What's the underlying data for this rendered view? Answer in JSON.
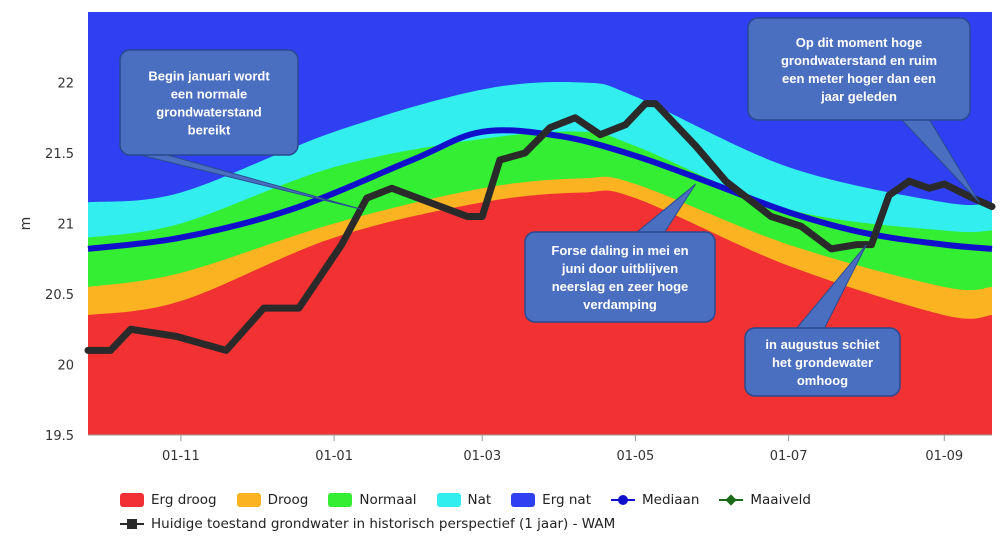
{
  "chart_data": {
    "type": "area",
    "ylabel": "m",
    "ylim": [
      19.5,
      22.5
    ],
    "yticks": [
      "19.5",
      "20",
      "20.5",
      "21",
      "21.5",
      "22"
    ],
    "xlim": [
      "2017-09-25",
      "2018-09-20"
    ],
    "xticks": [
      {
        "date": "2017-11-01",
        "label": "01-11"
      },
      {
        "date": "2018-01-01",
        "label": "01-01"
      },
      {
        "date": "2018-03-01",
        "label": "01-03"
      },
      {
        "date": "2018-05-01",
        "label": "01-05"
      },
      {
        "date": "2018-07-01",
        "label": "01-07"
      },
      {
        "date": "2018-09-01",
        "label": "01-09"
      }
    ],
    "x": [
      "2017-09-25",
      "2017-11-01",
      "2018-01-01",
      "2018-03-01",
      "2018-04-10",
      "2018-05-01",
      "2018-07-01",
      "2018-09-01",
      "2018-09-20"
    ],
    "bands": [
      {
        "name": "Erg droog",
        "color": "#f23232",
        "upper": [
          20.35,
          20.45,
          20.9,
          21.15,
          21.22,
          21.18,
          20.7,
          20.35,
          20.35
        ]
      },
      {
        "name": "Droog",
        "color": "#fbb322",
        "upper": [
          20.55,
          20.65,
          21.0,
          21.25,
          21.32,
          21.28,
          20.85,
          20.55,
          20.55
        ]
      },
      {
        "name": "Normaal",
        "color": "#33ee33",
        "upper": [
          20.9,
          21.0,
          21.4,
          21.6,
          21.65,
          21.55,
          21.1,
          20.95,
          20.95
        ]
      },
      {
        "name": "Nat",
        "color": "#33eeee",
        "upper": [
          21.15,
          21.22,
          21.65,
          21.95,
          22.0,
          21.9,
          21.4,
          21.15,
          21.15
        ]
      },
      {
        "name": "Erg nat",
        "color": "#2f3ff2",
        "upper": [
          22.5,
          22.5,
          22.5,
          22.5,
          22.5,
          22.5,
          22.5,
          22.5,
          22.5
        ]
      }
    ],
    "series": [
      {
        "name": "Mediaan",
        "color": "#1010cc",
        "x": [
          "2017-09-25",
          "2017-11-01",
          "2017-12-15",
          "2018-02-01",
          "2018-03-01",
          "2018-04-01",
          "2018-05-01",
          "2018-06-01",
          "2018-07-01",
          "2018-08-01",
          "2018-09-01",
          "2018-09-20"
        ],
        "values": [
          20.82,
          20.9,
          21.1,
          21.45,
          21.65,
          21.62,
          21.48,
          21.28,
          21.08,
          20.93,
          20.85,
          20.82
        ]
      },
      {
        "name": "Maaiveld",
        "color": "#1a6b1a",
        "x": [],
        "values": []
      },
      {
        "name": "Huidige toestand grondwater in historisch perspectief (1 jaar) - WAM",
        "color": "#2a2a2a",
        "x": [
          "2017-09-25",
          "2017-10-04",
          "2017-10-12",
          "2017-10-30",
          "2017-11-19",
          "2017-12-04",
          "2017-12-18",
          "2018-01-04",
          "2018-01-14",
          "2018-01-24",
          "2018-02-08",
          "2018-02-23",
          "2018-03-01",
          "2018-03-08",
          "2018-03-18",
          "2018-03-28",
          "2018-04-07",
          "2018-04-17",
          "2018-04-27",
          "2018-05-05",
          "2018-05-09",
          "2018-05-25",
          "2018-06-06",
          "2018-06-24",
          "2018-07-06",
          "2018-07-18",
          "2018-07-28",
          "2018-08-03",
          "2018-08-10",
          "2018-08-18",
          "2018-08-26",
          "2018-09-01",
          "2018-09-10",
          "2018-09-20"
        ],
        "values": [
          20.1,
          20.1,
          20.25,
          20.2,
          20.1,
          20.4,
          20.4,
          20.85,
          21.18,
          21.25,
          21.15,
          21.05,
          21.05,
          21.45,
          21.5,
          21.68,
          21.75,
          21.63,
          21.7,
          21.85,
          21.85,
          21.55,
          21.3,
          21.05,
          20.98,
          20.82,
          20.85,
          20.85,
          21.2,
          21.3,
          21.25,
          21.28,
          21.2,
          21.12
        ]
      }
    ],
    "annotations": [
      {
        "id": "ann1",
        "text": [
          "Begin januari wordt",
          "een normale",
          "grondwaterstand",
          "bereikt"
        ],
        "target_date": "2018-01-12",
        "target_value": 21.1
      },
      {
        "id": "ann2",
        "text": [
          "Forse daling in mei en",
          "juni door uitblijven",
          "neerslag  en zeer hoge",
          "verdamping"
        ],
        "target_date": "2018-05-25",
        "target_value": 21.28
      },
      {
        "id": "ann3",
        "text": [
          "in augustus schiet",
          "het grondewater",
          "omhoog"
        ],
        "target_date": "2018-08-01",
        "target_value": 20.85
      },
      {
        "id": "ann4",
        "text": [
          "Op dit moment hoge",
          "grondwaterstand en ruim",
          "een meter hoger dan een",
          "jaar geleden"
        ],
        "target_date": "2018-09-15",
        "target_value": 21.15
      }
    ],
    "legend": {
      "position": "bottom",
      "items": [
        {
          "label": "Erg droog",
          "kind": "area",
          "color": "#f23232"
        },
        {
          "label": "Droog",
          "kind": "area",
          "color": "#fbb322"
        },
        {
          "label": "Normaal",
          "kind": "area",
          "color": "#33ee33"
        },
        {
          "label": "Nat",
          "kind": "area",
          "color": "#33eeee"
        },
        {
          "label": "Erg nat",
          "kind": "area",
          "color": "#2f3ff2"
        },
        {
          "label": "Mediaan",
          "kind": "line-dot",
          "color": "#1010cc"
        },
        {
          "label": "Maaiveld",
          "kind": "line-diamond",
          "color": "#1a6b1a"
        }
      ],
      "item2": {
        "label": "Huidige toestand grondwater in historisch perspectief (1 jaar) - WAM",
        "kind": "line-square",
        "color": "#2a2a2a"
      }
    },
    "grid": false
  }
}
